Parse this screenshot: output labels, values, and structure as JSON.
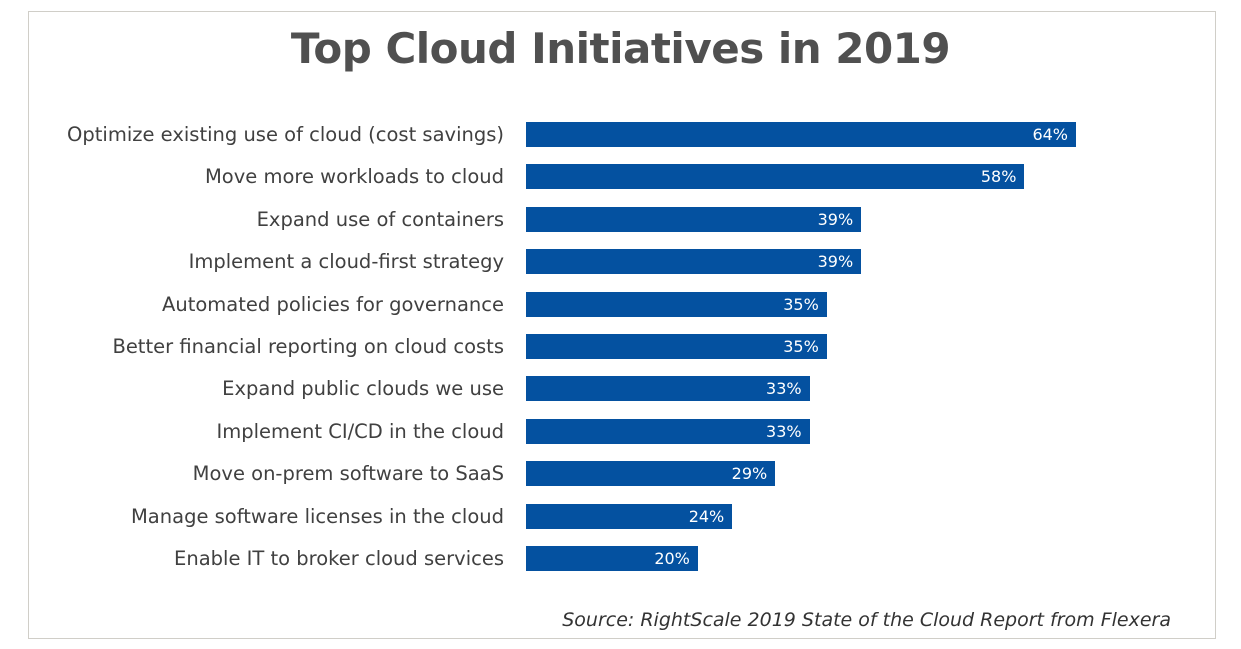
{
  "chart_data": {
    "type": "bar",
    "orientation": "horizontal",
    "title": "Top Cloud Initiatives in 2019",
    "categories": [
      "Optimize existing use of cloud (cost savings)",
      "Move more workloads to cloud",
      "Expand use of containers",
      "Implement a cloud-first strategy",
      "Automated policies for governance",
      "Better financial reporting on cloud costs",
      "Expand public clouds we use",
      "Implement CI/CD in the cloud",
      "Move on-prem software to SaaS",
      "Manage software licenses in the cloud",
      "Enable IT to broker cloud services"
    ],
    "values": [
      64,
      58,
      39,
      39,
      35,
      35,
      33,
      33,
      29,
      24,
      20
    ],
    "value_labels": [
      "64%",
      "58%",
      "39%",
      "39%",
      "35%",
      "35%",
      "33%",
      "33%",
      "29%",
      "24%",
      "20%"
    ],
    "unit": "%",
    "xlim": [
      0,
      64
    ],
    "grid": false,
    "bar_color": "#0451a0",
    "source": "Source: RightScale 2019 State of the Cloud Report from Flexera"
  }
}
